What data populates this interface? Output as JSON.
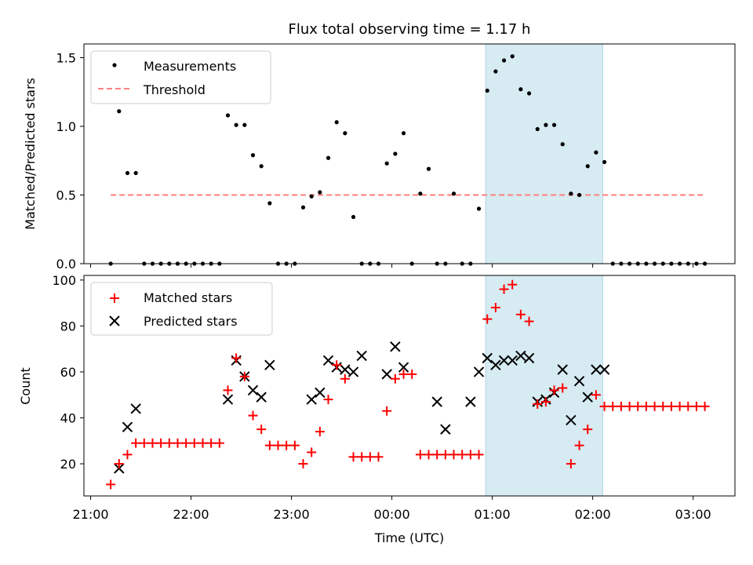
{
  "title": "Flux total observing time = 1.17 h",
  "colors": {
    "threshold": "#ff7f7f",
    "highlight": "#add8e6",
    "matched": "#ff0000",
    "predicted": "#000000",
    "measurement": "#000000"
  },
  "chart_data": [
    {
      "type": "scatter",
      "ylabel": "Matched/Predicted stars",
      "ylim": [
        0,
        1.6
      ],
      "yticks": [
        0.0,
        0.5,
        1.0,
        1.5
      ],
      "ytick_labels": [
        "0.0",
        "0.5",
        "1.0",
        "1.5"
      ],
      "legend": {
        "placement": "top-left",
        "entries": [
          "Measurements",
          "Threshold"
        ]
      },
      "highlight": {
        "start": "00:56",
        "end": "02:06"
      },
      "threshold": {
        "value": 0.5,
        "start": "21:12",
        "end": "03:07"
      },
      "series": [
        {
          "name": "Measurements",
          "x": [
            "21:12",
            "21:17",
            "21:22",
            "21:27",
            "21:32",
            "21:37",
            "21:42",
            "21:47",
            "21:52",
            "21:57",
            "22:02",
            "22:07",
            "22:12",
            "22:17",
            "22:22",
            "22:27",
            "22:32",
            "22:37",
            "22:42",
            "22:47",
            "22:52",
            "22:57",
            "23:02",
            "23:07",
            "23:12",
            "23:17",
            "23:22",
            "23:27",
            "23:32",
            "23:37",
            "23:42",
            "23:47",
            "23:52",
            "23:57",
            "00:02",
            "00:07",
            "00:12",
            "00:17",
            "00:22",
            "00:27",
            "00:32",
            "00:37",
            "00:42",
            "00:47",
            "00:52",
            "00:57",
            "01:02",
            "01:07",
            "01:12",
            "01:17",
            "01:22",
            "01:27",
            "01:32",
            "01:37",
            "01:42",
            "01:47",
            "01:52",
            "01:57",
            "02:02",
            "02:07",
            "02:12",
            "02:17",
            "02:22",
            "02:27",
            "02:32",
            "02:37",
            "02:42",
            "02:47",
            "02:52",
            "02:57",
            "03:02",
            "03:07"
          ],
          "y": [
            0,
            1.11,
            0.66,
            0.66,
            0,
            0,
            0,
            0,
            0,
            0,
            0,
            0,
            0,
            0,
            1.08,
            1.01,
            1.01,
            0.79,
            0.71,
            0.44,
            0,
            0,
            0,
            0.41,
            0.49,
            0.52,
            0.77,
            1.03,
            0.95,
            0.34,
            0,
            0,
            0,
            0.73,
            0.8,
            0.95,
            0,
            0.51,
            0.69,
            0,
            0,
            0.51,
            0,
            0,
            0.4,
            1.26,
            1.4,
            1.48,
            1.51,
            1.27,
            1.24,
            0.98,
            1.01,
            1.01,
            0.87,
            0.51,
            0.5,
            0.71,
            0.81,
            0.74,
            0,
            0,
            0,
            0,
            0,
            0,
            0,
            0,
            0,
            0,
            0,
            0
          ]
        }
      ]
    },
    {
      "type": "scatter",
      "xlabel": "Time (UTC)",
      "ylabel": "Count",
      "ylim": [
        6,
        102
      ],
      "yticks": [
        20,
        40,
        60,
        80,
        100
      ],
      "ytick_labels": [
        "20",
        "40",
        "60",
        "80",
        "100"
      ],
      "xticks": [
        "21:00",
        "22:00",
        "23:00",
        "00:00",
        "01:00",
        "02:00",
        "03:00"
      ],
      "xlim": [
        "20:56",
        "03:25"
      ],
      "legend": {
        "placement": "top-left",
        "entries": [
          "Matched stars",
          "Predicted stars"
        ]
      },
      "highlight": {
        "start": "00:56",
        "end": "02:06"
      },
      "series": [
        {
          "name": "Matched stars",
          "x": [
            "21:12",
            "21:17",
            "21:22",
            "21:27",
            "21:32",
            "21:37",
            "21:42",
            "21:47",
            "21:52",
            "21:57",
            "22:02",
            "22:07",
            "22:12",
            "22:17",
            "22:22",
            "22:27",
            "22:32",
            "22:37",
            "22:42",
            "22:47",
            "22:52",
            "22:57",
            "23:02",
            "23:07",
            "23:12",
            "23:17",
            "23:22",
            "23:27",
            "23:32",
            "23:37",
            "23:42",
            "23:47",
            "23:52",
            "23:57",
            "00:02",
            "00:07",
            "00:12",
            "00:17",
            "00:22",
            "00:27",
            "00:32",
            "00:37",
            "00:42",
            "00:47",
            "00:52",
            "00:57",
            "01:02",
            "01:07",
            "01:12",
            "01:17",
            "01:22",
            "01:27",
            "01:32",
            "01:37",
            "01:42",
            "01:47",
            "01:52",
            "01:57",
            "02:02",
            "02:07",
            "02:12",
            "02:17",
            "02:22",
            "02:27",
            "02:32",
            "02:37",
            "02:42",
            "02:47",
            "02:52",
            "02:57",
            "03:02",
            "03:07"
          ],
          "y": [
            11,
            20,
            24,
            29,
            29,
            29,
            29,
            29,
            29,
            29,
            29,
            29,
            29,
            29,
            52,
            66,
            58,
            41,
            35,
            28,
            28,
            28,
            28,
            20,
            25,
            34,
            48,
            63,
            57,
            23,
            23,
            23,
            23,
            43,
            57,
            59,
            59,
            24,
            24,
            24,
            24,
            24,
            24,
            24,
            24,
            83,
            88,
            96,
            98,
            85,
            82,
            46,
            47,
            52,
            53,
            20,
            28,
            35,
            50,
            45,
            45,
            45,
            45,
            45,
            45,
            45,
            45,
            45,
            45,
            45,
            45,
            45
          ]
        },
        {
          "name": "Predicted stars",
          "x": [
            "21:17",
            "21:22",
            "21:27",
            "22:22",
            "22:27",
            "22:32",
            "22:37",
            "22:42",
            "22:47",
            "23:12",
            "23:17",
            "23:22",
            "23:27",
            "23:32",
            "23:37",
            "23:42",
            "23:57",
            "00:02",
            "00:07",
            "00:27",
            "00:32",
            "00:47",
            "00:52",
            "00:57",
            "01:02",
            "01:07",
            "01:12",
            "01:17",
            "01:22",
            "01:27",
            "01:32",
            "01:37",
            "01:42",
            "01:47",
            "01:52",
            "01:57",
            "02:02",
            "02:07"
          ],
          "y": [
            18,
            36,
            44,
            48,
            65,
            58,
            52,
            49,
            63,
            48,
            51,
            65,
            62,
            61,
            60,
            67,
            59,
            71,
            62,
            47,
            35,
            47,
            60,
            66,
            63,
            65,
            65,
            67,
            66,
            47,
            48,
            51,
            61,
            39,
            56,
            49,
            61,
            61
          ]
        }
      ]
    }
  ]
}
